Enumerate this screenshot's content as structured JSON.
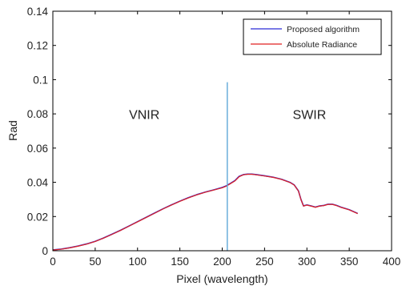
{
  "chart_data": {
    "type": "line",
    "title": "",
    "xlabel": "Pixel (wavelength)",
    "ylabel": "Rad",
    "xlim": [
      0,
      400
    ],
    "ylim": [
      0,
      0.14
    ],
    "xticks": [
      0,
      50,
      100,
      150,
      200,
      250,
      300,
      350,
      400
    ],
    "yticks": [
      0,
      0.02,
      0.04,
      0.06,
      0.08,
      0.1,
      0.12,
      0.14
    ],
    "xtick_labels": [
      "0",
      "50",
      "100",
      "150",
      "200",
      "250",
      "300",
      "350",
      "400"
    ],
    "ytick_labels": [
      "0",
      "0.02",
      "0.04",
      "0.06",
      "0.08",
      "0.1",
      "0.12",
      "0.14"
    ],
    "grid": false,
    "legend_position": "top-right",
    "series": [
      {
        "name": "Proposed algorithm",
        "color": "#2b2bd6",
        "x": [
          0,
          10,
          20,
          30,
          40,
          50,
          60,
          70,
          80,
          90,
          100,
          110,
          120,
          130,
          140,
          150,
          160,
          170,
          180,
          190,
          200,
          205,
          210,
          215,
          220,
          225,
          230,
          235,
          240,
          250,
          260,
          270,
          280,
          285,
          290,
          293,
          296,
          300,
          305,
          310,
          315,
          320,
          325,
          330,
          335,
          340,
          350,
          360
        ],
        "y": [
          0.0005,
          0.001,
          0.0018,
          0.0028,
          0.004,
          0.0055,
          0.0075,
          0.0097,
          0.012,
          0.0145,
          0.017,
          0.0195,
          0.022,
          0.0245,
          0.0268,
          0.029,
          0.031,
          0.0328,
          0.0343,
          0.0356,
          0.037,
          0.038,
          0.0395,
          0.041,
          0.0435,
          0.0445,
          0.0448,
          0.0448,
          0.0445,
          0.0438,
          0.043,
          0.0418,
          0.04,
          0.0385,
          0.035,
          0.03,
          0.0262,
          0.0268,
          0.0262,
          0.0255,
          0.0262,
          0.0265,
          0.0272,
          0.0272,
          0.0265,
          0.0255,
          0.024,
          0.0218
        ]
      },
      {
        "name": "Absolute Radiance",
        "color": "#e02020",
        "x": [
          0,
          10,
          20,
          30,
          40,
          50,
          60,
          70,
          80,
          90,
          100,
          110,
          120,
          130,
          140,
          150,
          160,
          170,
          180,
          190,
          200,
          205,
          210,
          215,
          220,
          225,
          230,
          235,
          240,
          250,
          260,
          270,
          280,
          285,
          290,
          293,
          296,
          300,
          305,
          310,
          315,
          320,
          325,
          330,
          335,
          340,
          350,
          360
        ],
        "y": [
          0.0004,
          0.0009,
          0.0017,
          0.0027,
          0.0039,
          0.0054,
          0.0074,
          0.0096,
          0.0119,
          0.0144,
          0.0169,
          0.0194,
          0.0219,
          0.0244,
          0.0267,
          0.0289,
          0.0309,
          0.0327,
          0.0342,
          0.0355,
          0.0368,
          0.0378,
          0.0393,
          0.0408,
          0.0433,
          0.0444,
          0.0447,
          0.0447,
          0.0444,
          0.0437,
          0.0429,
          0.0417,
          0.0399,
          0.0384,
          0.0349,
          0.0299,
          0.0261,
          0.0267,
          0.0261,
          0.0254,
          0.0261,
          0.0264,
          0.0271,
          0.0271,
          0.0264,
          0.0254,
          0.0239,
          0.0217
        ]
      }
    ],
    "annotations": [
      {
        "text": "VNIR",
        "x": 108,
        "y": 0.077
      },
      {
        "text": "SWIR",
        "x": 303,
        "y": 0.077
      }
    ],
    "vertical_line": {
      "x": 206,
      "y_top": 0.0985,
      "color": "#5fa8d8"
    }
  }
}
